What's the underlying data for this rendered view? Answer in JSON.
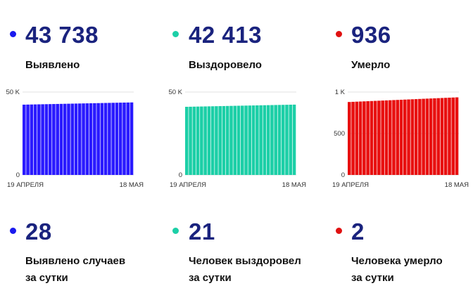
{
  "stats": [
    {
      "value": "43 738",
      "label": "Выявлено",
      "color": "#1a1aee"
    },
    {
      "value": "42 413",
      "label": "Выздоровело",
      "color": "#1ccfa7"
    },
    {
      "value": "936",
      "label": "Умерло",
      "color": "#e01010"
    }
  ],
  "daily": [
    {
      "value": "28",
      "line1": "Выявлено случаев",
      "line2": "за сутки",
      "color": "#1a1aee"
    },
    {
      "value": "21",
      "line1": "Человек выздоровел",
      "line2": "за сутки",
      "color": "#1ccfa7"
    },
    {
      "value": "2",
      "line1": "Человека умерло",
      "line2": "за сутки",
      "color": "#e01010"
    }
  ],
  "chart_data": [
    {
      "type": "bar",
      "color": "#2a1aff",
      "ylim": [
        0,
        50000
      ],
      "yticks": [
        {
          "v": 0,
          "label": "0"
        },
        {
          "v": 50000,
          "label": "50 K"
        }
      ],
      "xlabels": [
        "19 АПРЕЛЯ",
        "18 МАЯ"
      ],
      "n": 30,
      "start": 42400,
      "end": 43738
    },
    {
      "type": "bar",
      "color": "#1ccfa7",
      "ylim": [
        0,
        50000
      ],
      "yticks": [
        {
          "v": 0,
          "label": "0"
        },
        {
          "v": 50000,
          "label": "50 K"
        }
      ],
      "xlabels": [
        "19 АПРЕЛЯ",
        "18 МАЯ"
      ],
      "n": 30,
      "start": 41100,
      "end": 42413
    },
    {
      "type": "bar",
      "color": "#e81010",
      "ylim": [
        0,
        1000
      ],
      "yticks": [
        {
          "v": 0,
          "label": "0"
        },
        {
          "v": 500,
          "label": "500"
        },
        {
          "v": 1000,
          "label": "1 K"
        }
      ],
      "xlabels": [
        "19 АПРЕЛЯ",
        "18 МАЯ"
      ],
      "n": 30,
      "start": 880,
      "end": 936
    }
  ]
}
